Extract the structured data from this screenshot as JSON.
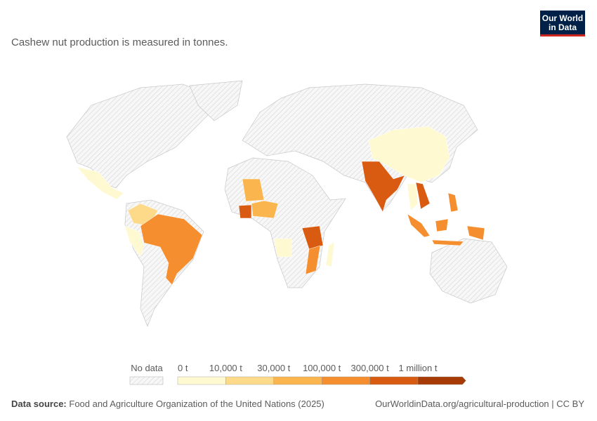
{
  "header": {
    "subtitle": "Cashew nut production is measured in tonnes.",
    "logo": [
      "Our World",
      "in Data"
    ]
  },
  "legend": {
    "no_data": "No data",
    "bins": [
      {
        "label": "0 t",
        "color": "#fef9d0"
      },
      {
        "label": "10,000 t",
        "color": "#fdd98a"
      },
      {
        "label": "30,000 t",
        "color": "#fbb54e"
      },
      {
        "label": "100,000 t",
        "color": "#f58e2f"
      },
      {
        "label": "300,000 t",
        "color": "#d95b12"
      },
      {
        "label": "1 million t",
        "color": "#a63b05"
      }
    ]
  },
  "footer": {
    "source_label": "Data source:",
    "source": "Food and Agriculture Organization of the United Nations (2025)",
    "url": "OurWorldinData.org/agricultural-production | CC BY"
  }
}
